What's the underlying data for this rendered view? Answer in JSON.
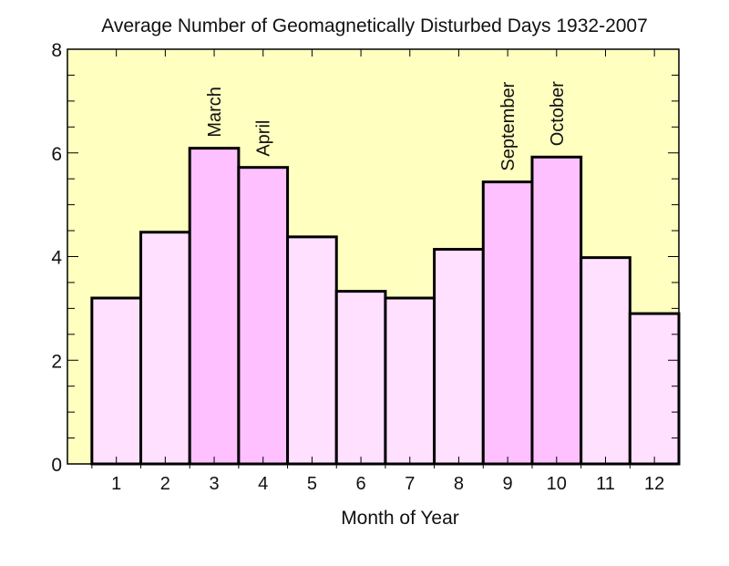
{
  "chart_data": {
    "type": "bar",
    "title": "Average Number of Geomagnetically Disturbed Days 1932-2007",
    "xlabel": "Month of Year",
    "ylabel": "",
    "categories": [
      1,
      2,
      3,
      4,
      5,
      6,
      7,
      8,
      9,
      10,
      11,
      12
    ],
    "values": [
      3.2,
      4.47,
      6.09,
      5.72,
      4.38,
      3.33,
      3.2,
      4.14,
      5.44,
      5.92,
      3.98,
      2.9
    ],
    "bar_annotations": {
      "3": "March",
      "4": "April",
      "9": "September",
      "10": "October"
    },
    "highlighted": [
      3,
      4,
      9,
      10
    ],
    "xlim": [
      0,
      12.5
    ],
    "ylim": [
      0,
      8
    ],
    "yticks": [
      0,
      2,
      4,
      6,
      8
    ],
    "xticks": [
      1,
      2,
      3,
      4,
      5,
      6,
      7,
      8,
      9,
      10,
      11,
      12
    ],
    "grid": false,
    "legend": "none",
    "colors": {
      "plot_background": "#ffffc0",
      "bar": "#ffe0ff",
      "bar_highlight": "#ffc0ff",
      "edge": "#000000"
    }
  }
}
